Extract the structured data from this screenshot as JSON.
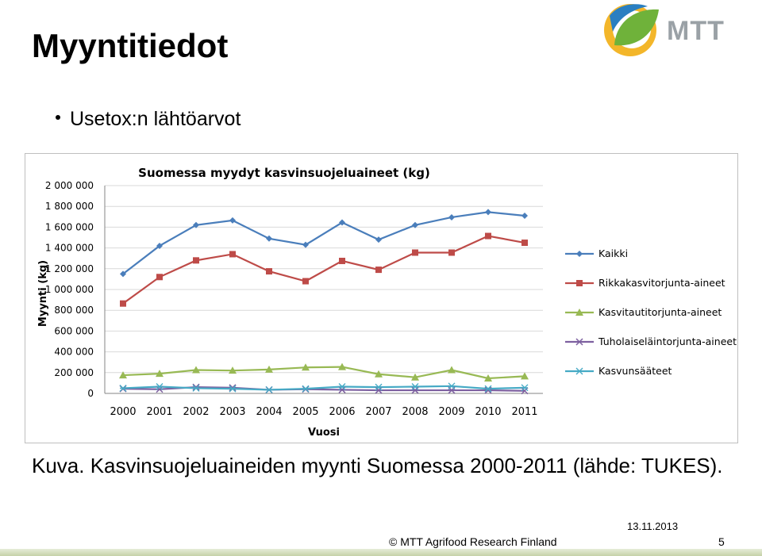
{
  "slide": {
    "title": "Myyntitiedot",
    "bullet": "Usetox:n lähtöarvot",
    "caption": "Kuva. Kasvinsuojeluaineiden myynti Suomessa 2000-2011 (lähde: TUKES).",
    "footer_date": "13.11.2013",
    "footer_copy": "© MTT Agrifood Research Finland",
    "page_number": "5",
    "logo_text": "MTT"
  },
  "colors": {
    "kaikki": "#4a7ebb",
    "rikkakasvitorjunta": "#be4b48",
    "kasvitautitorjunta": "#98b954",
    "tuholaiselaintorjunta": "#7d60a0",
    "kasvunsaateet": "#46aac5"
  },
  "chart_data": {
    "type": "line",
    "title": "Suomessa myydyt kasvinsuojeluaineet (kg)",
    "xlabel": "Vuosi",
    "ylabel": "Myynti (kg)",
    "categories": [
      "2000",
      "2001",
      "2002",
      "2003",
      "2004",
      "2005",
      "2006",
      "2007",
      "2008",
      "2009",
      "2010",
      "2011"
    ],
    "ylim": [
      0,
      2000000
    ],
    "yticks": [
      0,
      200000,
      400000,
      600000,
      800000,
      1000000,
      1200000,
      1400000,
      1600000,
      1800000,
      2000000
    ],
    "ytick_labels": [
      "0",
      "200 000",
      "400 000",
      "600 000",
      "800 000",
      "1 000 000",
      "1 200 000",
      "1 400 000",
      "1 600 000",
      "1 800 000",
      "2 000 000"
    ],
    "grid": true,
    "legend_position": "right",
    "series": [
      {
        "name": "Kaikki",
        "marker": "diamond",
        "values": [
          1150000,
          1420000,
          1620000,
          1665000,
          1490000,
          1430000,
          1645000,
          1480000,
          1620000,
          1695000,
          1745000,
          1710000
        ]
      },
      {
        "name": "Rikkakasvitorjunta-aineet",
        "marker": "square",
        "values": [
          865000,
          1120000,
          1280000,
          1340000,
          1175000,
          1080000,
          1275000,
          1190000,
          1355000,
          1355000,
          1515000,
          1450000
        ]
      },
      {
        "name": "Kasvitautitorjunta-aineet",
        "marker": "triangle",
        "values": [
          175000,
          190000,
          225000,
          220000,
          230000,
          250000,
          255000,
          185000,
          155000,
          225000,
          145000,
          165000
        ]
      },
      {
        "name": "Tuholaiseläintorjunta-aineet",
        "marker": "x",
        "values": [
          45000,
          40000,
          60000,
          55000,
          35000,
          40000,
          35000,
          30000,
          30000,
          30000,
          30000,
          25000
        ]
      },
      {
        "name": "Kasvunsääteet",
        "marker": "star",
        "values": [
          50000,
          65000,
          50000,
          45000,
          35000,
          45000,
          65000,
          60000,
          65000,
          70000,
          45000,
          55000
        ]
      }
    ]
  }
}
